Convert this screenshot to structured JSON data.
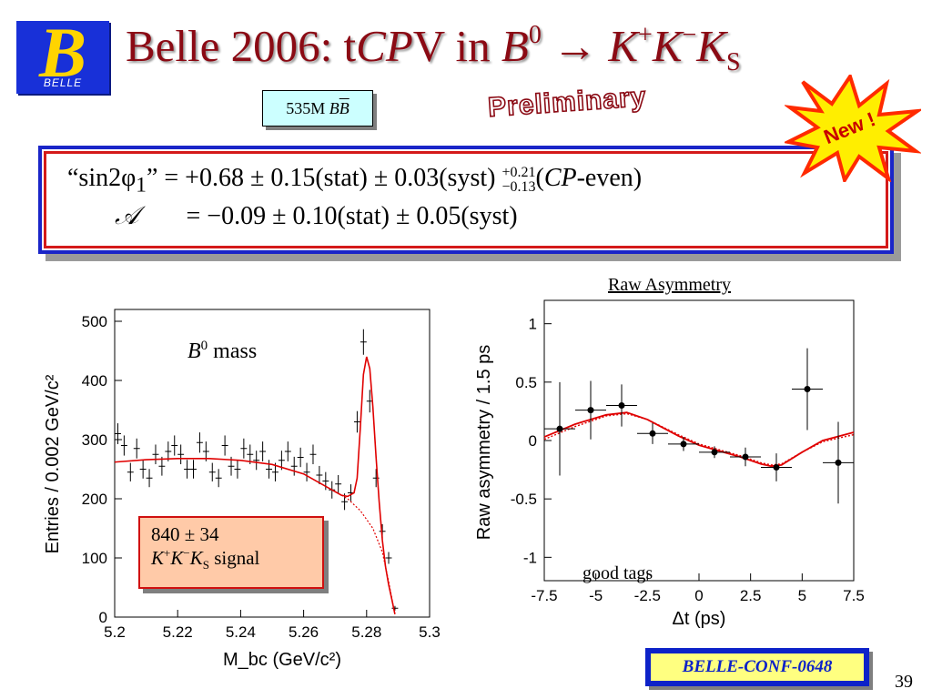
{
  "logo": {
    "letter": "B",
    "name": "BELLE"
  },
  "title": {
    "prefix": "Belle 2006: t",
    "cp": "CP",
    "v_in": "V in ",
    "b": "B",
    "b_sup": "0",
    "arrow": " → ",
    "k1": "K",
    "k1_sup": "+",
    "k2": "K",
    "k2_sup": "−",
    "k3": "K",
    "k3_sub": "S"
  },
  "sample": {
    "count": "535M ",
    "bb": "B",
    "bbar": "B"
  },
  "preliminary": "Preliminary",
  "new_badge": "New !",
  "results": {
    "sin_label_open": "“sin2φ",
    "sin_sub": "1",
    "sin_label_close": "”",
    "sin_value": " = +0.68 ± 0.15(stat) ± 0.03(syst) ",
    "syst_up": "+0.21",
    "syst_down": "−0.13",
    "cp_open": "(",
    "cp": "CP",
    "cp_even": "-even)",
    "a_symbol": "𝒜",
    "a_value": "= −0.09 ± 0.10(stat) ± 0.05(syst)"
  },
  "raw_title": "Raw Asymmetry",
  "mass_label": {
    "b": "B",
    "sup": "0",
    "rest": " mass"
  },
  "signal": {
    "yield": "840 ± 34",
    "k1": "K",
    "k1_sup": "+",
    "k2": "K",
    "k2_sup": "−",
    "k3": "K",
    "k3_sub": "S",
    "word": " signal"
  },
  "good_tags": "good tags",
  "conf": "BELLE-CONF-0648",
  "page_number": "39",
  "chart_data": [
    {
      "type": "scatter",
      "title": "",
      "xlabel": "M_bc (GeV/c²)",
      "ylabel": "Entries / 0.002 GeV/c²",
      "xlim": [
        5.2,
        5.3
      ],
      "ylim": [
        0,
        520
      ],
      "xticks": [
        "5.2",
        "5.22",
        "5.24",
        "5.26",
        "5.28",
        "5.3"
      ],
      "yticks": [
        "0",
        "100",
        "200",
        "300",
        "400",
        "500"
      ],
      "series": [
        {
          "type": "points",
          "x": [
            5.201,
            5.203,
            5.205,
            5.207,
            5.209,
            5.211,
            5.213,
            5.215,
            5.217,
            5.219,
            5.221,
            5.223,
            5.225,
            5.227,
            5.229,
            5.231,
            5.233,
            5.235,
            5.237,
            5.239,
            5.241,
            5.243,
            5.245,
            5.247,
            5.249,
            5.251,
            5.253,
            5.255,
            5.257,
            5.259,
            5.261,
            5.263,
            5.265,
            5.267,
            5.269,
            5.271,
            5.273,
            5.275,
            5.277,
            5.279,
            5.281,
            5.283,
            5.285,
            5.287,
            5.289
          ],
          "y": [
            310,
            290,
            245,
            285,
            250,
            235,
            275,
            255,
            280,
            290,
            275,
            250,
            250,
            295,
            280,
            245,
            235,
            290,
            255,
            250,
            285,
            275,
            265,
            280,
            250,
            245,
            265,
            280,
            255,
            270,
            245,
            275,
            240,
            230,
            215,
            225,
            195,
            210,
            330,
            465,
            365,
            235,
            145,
            100,
            15
          ]
        },
        {
          "type": "line",
          "x": [
            5.2,
            5.21,
            5.22,
            5.23,
            5.24,
            5.25,
            5.26,
            5.27,
            5.272,
            5.274,
            5.276,
            5.277,
            5.278,
            5.279,
            5.28,
            5.281,
            5.282,
            5.283,
            5.284,
            5.285,
            5.286,
            5.287,
            5.288,
            5.289
          ],
          "y": [
            262,
            266,
            268,
            268,
            265,
            258,
            242,
            212,
            206,
            204,
            210,
            235,
            320,
            410,
            440,
            420,
            355,
            270,
            195,
            130,
            85,
            55,
            30,
            5
          ]
        },
        {
          "type": "dashed",
          "x": [
            5.27,
            5.274,
            5.278,
            5.282,
            5.285,
            5.287,
            5.289
          ],
          "y": [
            212,
            200,
            180,
            150,
            110,
            60,
            5
          ]
        }
      ]
    },
    {
      "type": "scatter",
      "title": "Raw Asymmetry",
      "xlabel": "Δt (ps)",
      "ylabel": "Raw asymmetry / 1.5 ps",
      "xlim": [
        -7.5,
        7.5
      ],
      "ylim": [
        -1.2,
        1.2
      ],
      "xticks": [
        "-7.5",
        "-5",
        "-2.5",
        "0",
        "2.5",
        "5",
        "7.5"
      ],
      "yticks": [
        "-1",
        "-0.5",
        "0",
        "0.5",
        "1"
      ],
      "series": [
        {
          "type": "points",
          "x": [
            -6.75,
            -5.25,
            -3.75,
            -2.25,
            -0.75,
            0.75,
            2.25,
            3.75,
            5.25,
            6.75
          ],
          "y": [
            0.1,
            0.26,
            0.3,
            0.06,
            -0.03,
            -0.1,
            -0.14,
            -0.23,
            0.44,
            -0.19
          ],
          "yerr": [
            0.4,
            0.25,
            0.18,
            0.09,
            0.06,
            0.05,
            0.08,
            0.12,
            0.35,
            0.35
          ]
        },
        {
          "type": "line",
          "x": [
            -7.5,
            -6,
            -4.5,
            -3.5,
            -2.5,
            -1,
            0,
            1,
            2,
            3,
            3.5,
            4,
            5,
            6,
            7.5
          ],
          "y": [
            0.03,
            0.14,
            0.22,
            0.24,
            0.18,
            0.04,
            -0.04,
            -0.09,
            -0.14,
            -0.2,
            -0.22,
            -0.21,
            -0.1,
            0.0,
            0.07
          ]
        },
        {
          "type": "dashed",
          "x": [
            -7.5,
            -6,
            -4.5,
            -3.5,
            -2.5,
            -1,
            0,
            1,
            2,
            3,
            3.5,
            4,
            5,
            6,
            7.5
          ],
          "y": [
            0.01,
            0.12,
            0.21,
            0.23,
            0.18,
            0.05,
            -0.03,
            -0.08,
            -0.13,
            -0.19,
            -0.21,
            -0.2,
            -0.1,
            -0.01,
            0.05
          ]
        }
      ]
    }
  ]
}
